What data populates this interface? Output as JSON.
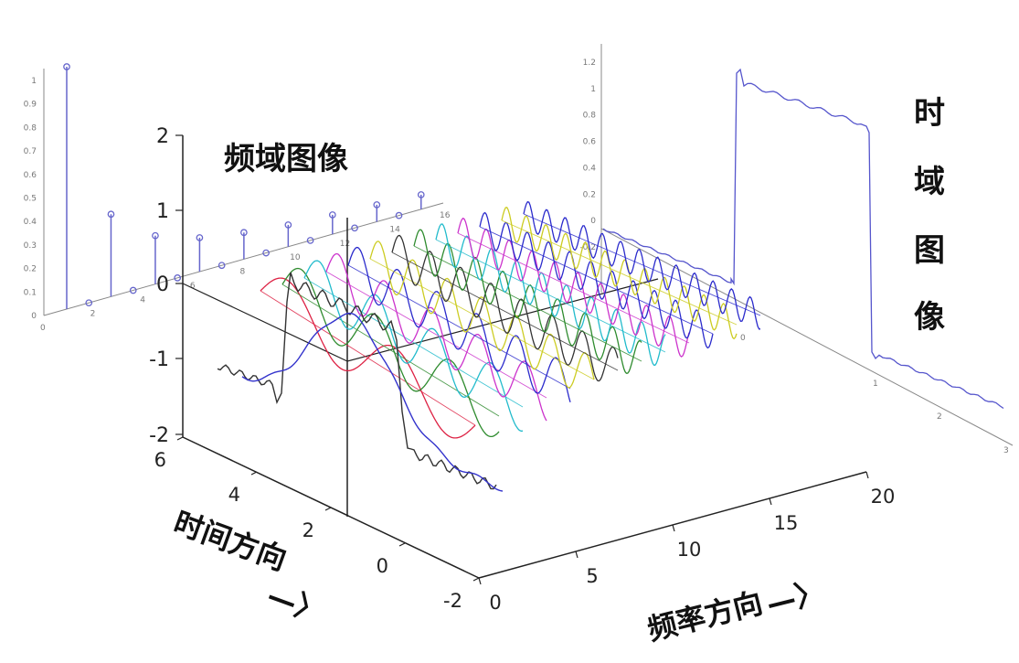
{
  "labels": {
    "freq_image": "频域图像",
    "time_image_chars": [
      "时",
      "域",
      "图",
      "像"
    ],
    "time_direction": "时间方向",
    "freq_direction": "频率方向",
    "arrow": "—〉"
  },
  "axes": {
    "z_ticks": [
      "2",
      "1",
      "0",
      "-1",
      "-2"
    ],
    "time_ticks": [
      "6",
      "4",
      "2",
      "0",
      "-2"
    ],
    "freq_ticks": [
      "0",
      "5",
      "10",
      "15",
      "20"
    ]
  },
  "left_stem": {
    "y_ticks": [
      "1",
      "0.9",
      "0.8",
      "0.7",
      "0.6",
      "0.5",
      "0.4",
      "0.3",
      "0.2",
      "0.1",
      "0"
    ],
    "x_ticks": [
      "0",
      "2",
      "4",
      "6",
      "8",
      "10",
      "12",
      "14",
      "16"
    ],
    "values": [
      1.0,
      0.0,
      0.34,
      0.0,
      0.2,
      0.0,
      0.14,
      0.0,
      0.11,
      0.0,
      0.09,
      0.0,
      0.08,
      0.0,
      0.07,
      0.0,
      0.06
    ]
  },
  "right_square": {
    "y_ticks": [
      "1.2",
      "1",
      "0.8",
      "0.6",
      "0.4",
      "0.2",
      "0",
      "-0.2"
    ],
    "x_ticks": [
      "0",
      "1",
      "2",
      "3"
    ]
  },
  "colors": {
    "axis": "#222222",
    "blue": "#2b2bcc",
    "green": "#2e8b2e",
    "red": "#dd2244",
    "cyan": "#22bbcc",
    "magenta": "#cc33cc",
    "yellow": "#cccc22",
    "dark": "#333333",
    "stem": "#6666cc"
  }
}
